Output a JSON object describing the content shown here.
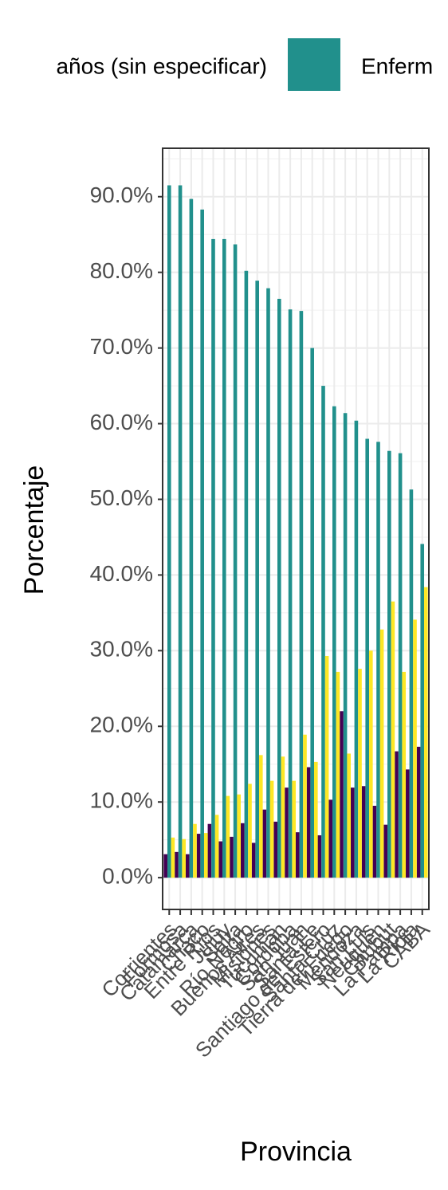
{
  "chart_data": {
    "type": "bar",
    "y_label": "Porcentaje",
    "x_label": "Provincia",
    "categories": [
      "Corrientes",
      "Formosa",
      "Catamarca",
      "Chaco",
      "Entre Ríos",
      "Jujuy",
      "Salta",
      "Río Negro",
      "Buenos Aires",
      "Misiones",
      "Tucumán",
      "Córdoba",
      "San Juan",
      "Santa Fe",
      "Santiago del Estero",
      "Santa Cruz",
      "Tierra del Fuego",
      "Mendoza",
      "San Luis",
      "Neuquén",
      "Chubut",
      "La Pampa",
      "La Rioja",
      "CABA"
    ],
    "series": [
      {
        "name": "años (sin especificar)",
        "color": "#440154",
        "values": [
          3.1,
          3.4,
          3.1,
          5.8,
          7.1,
          4.8,
          5.4,
          7.2,
          4.6,
          9.0,
          7.4,
          11.9,
          6.0,
          14.6,
          5.6,
          10.3,
          22.0,
          11.9,
          12.1,
          9.5,
          7.0,
          16.7,
          14.3,
          17.3
        ]
      },
      {
        "name": "Enferm",
        "color": "#21908c",
        "values": [
          91.5,
          91.5,
          89.7,
          88.3,
          84.4,
          84.4,
          83.7,
          80.2,
          78.9,
          77.9,
          76.5,
          75.1,
          74.9,
          70.0,
          65.0,
          62.3,
          61.4,
          60.4,
          58.0,
          57.6,
          56.4,
          56.1,
          51.3,
          44.1
        ]
      },
      {
        "color": "#fde725",
        "values": [
          5.3,
          5.1,
          7.1,
          5.9,
          8.3,
          10.8,
          11.0,
          12.4,
          16.2,
          12.8,
          16.0,
          12.8,
          18.9,
          15.3,
          29.3,
          27.2,
          16.4,
          27.6,
          30.0,
          32.8,
          36.5,
          27.2,
          34.1,
          38.4
        ]
      }
    ],
    "ylim": [
      -4.2,
      96.4
    ],
    "yticks": [
      {
        "value": 0,
        "label": "0.0%"
      },
      {
        "value": 10,
        "label": "10.0%"
      },
      {
        "value": 20,
        "label": "20.0%"
      },
      {
        "value": 30,
        "label": "30.0%"
      },
      {
        "value": 40,
        "label": "40.0%"
      },
      {
        "value": 50,
        "label": "50.0%"
      },
      {
        "value": 60,
        "label": "60.0%"
      },
      {
        "value": 70,
        "label": "70.0%"
      },
      {
        "value": 80,
        "label": "80.0%"
      },
      {
        "value": 90,
        "label": "90.0%"
      }
    ],
    "grid": true
  }
}
